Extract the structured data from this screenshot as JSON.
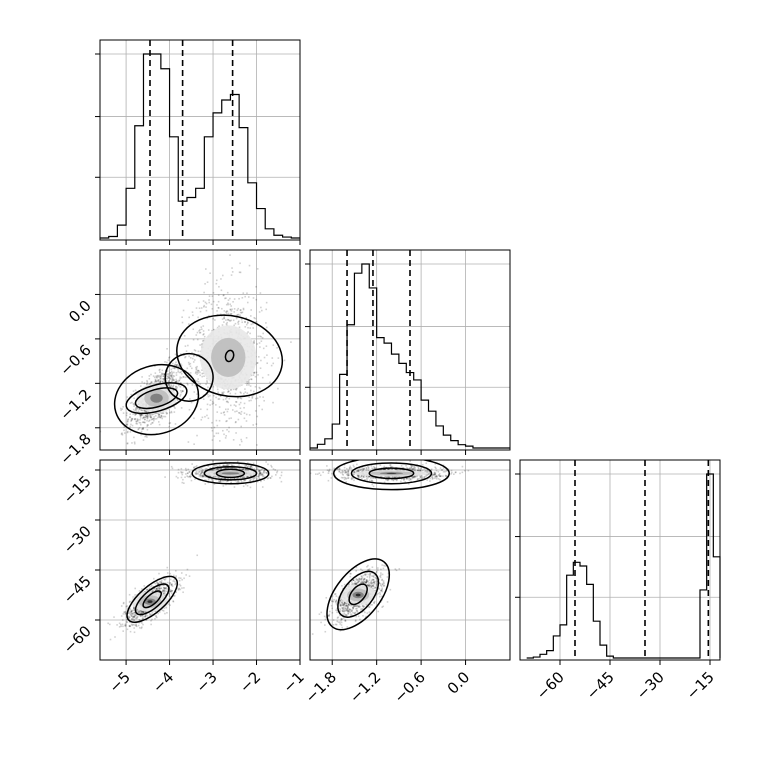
{
  "chart_data": {
    "type": "corner",
    "parameters": [
      {
        "range": [
          -5.6,
          -1.0
        ],
        "ticks": [
          -5,
          -4,
          -3,
          -2,
          -1
        ],
        "tick_labels": [
          "−5",
          "−4",
          "−3",
          "−2",
          "−1"
        ],
        "quantiles": [
          -4.45,
          -3.7,
          -2.55
        ],
        "histogram": {
          "bins": [
            [
              -5.6,
              -5.4
            ],
            [
              -5.4,
              -5.2
            ],
            [
              -5.2,
              -5.0
            ],
            [
              -5.0,
              -4.8
            ],
            [
              -4.8,
              -4.6
            ],
            [
              -4.6,
              -4.4
            ],
            [
              -4.4,
              -4.2
            ],
            [
              -4.2,
              -4.0
            ],
            [
              -4.0,
              -3.8
            ],
            [
              -3.8,
              -3.6
            ],
            [
              -3.6,
              -3.4
            ],
            [
              -3.4,
              -3.2
            ],
            [
              -3.2,
              -3.0
            ],
            [
              -3.0,
              -2.8
            ],
            [
              -2.8,
              -2.6
            ],
            [
              -2.6,
              -2.4
            ],
            [
              -2.4,
              -2.2
            ],
            [
              -2.2,
              -2.0
            ],
            [
              -2.0,
              -1.8
            ],
            [
              -1.8,
              -1.6
            ],
            [
              -1.6,
              -1.4
            ],
            [
              -1.4,
              -1.2
            ],
            [
              -1.2,
              -1.0
            ]
          ],
          "counts": [
            0.0,
            0.008,
            0.07,
            0.27,
            0.61,
            1.0,
            1.0,
            0.92,
            0.55,
            0.2,
            0.22,
            0.27,
            0.55,
            0.68,
            0.75,
            0.78,
            0.6,
            0.3,
            0.16,
            0.05,
            0.015,
            0.005,
            0.0
          ]
        }
      },
      {
        "range": [
          -2.1,
          0.6
        ],
        "ticks": [
          -1.8,
          -1.2,
          -0.6,
          0.0
        ],
        "tick_labels": [
          "−1.8",
          "−1.2",
          "−0.6",
          "0.0"
        ],
        "quantiles": [
          -1.6,
          -1.25,
          -0.75
        ],
        "histogram": {
          "bins": [
            [
              -2.1,
              -2.0
            ],
            [
              -2.0,
              -1.9
            ],
            [
              -1.9,
              -1.8
            ],
            [
              -1.8,
              -1.7
            ],
            [
              -1.7,
              -1.6
            ],
            [
              -1.6,
              -1.5
            ],
            [
              -1.5,
              -1.4
            ],
            [
              -1.4,
              -1.3
            ],
            [
              -1.3,
              -1.2
            ],
            [
              -1.2,
              -1.1
            ],
            [
              -1.1,
              -1.0
            ],
            [
              -1.0,
              -0.9
            ],
            [
              -0.9,
              -0.8
            ],
            [
              -0.8,
              -0.7
            ],
            [
              -0.7,
              -0.6
            ],
            [
              -0.6,
              -0.5
            ],
            [
              -0.5,
              -0.4
            ],
            [
              -0.4,
              -0.3
            ],
            [
              -0.3,
              -0.2
            ],
            [
              -0.2,
              -0.1
            ],
            [
              -0.1,
              0.0
            ],
            [
              0.0,
              0.1
            ],
            [
              0.1,
              0.2
            ],
            [
              0.2,
              0.3
            ],
            [
              0.3,
              0.4
            ],
            [
              0.4,
              0.5
            ],
            [
              0.5,
              0.6
            ]
          ],
          "counts": [
            0.0,
            0.02,
            0.05,
            0.13,
            0.4,
            0.67,
            0.95,
            1.0,
            0.87,
            0.6,
            0.57,
            0.51,
            0.46,
            0.41,
            0.37,
            0.26,
            0.2,
            0.12,
            0.07,
            0.04,
            0.018,
            0.01,
            0.0,
            0.0,
            0.0,
            0.0,
            0.0
          ]
        }
      },
      {
        "range": [
          -72,
          -12
        ],
        "ticks": [
          -60,
          -45,
          -30,
          -15
        ],
        "tick_labels": [
          "−60",
          "−45",
          "−30",
          "−15"
        ],
        "quantiles": [
          -55.5,
          -34.5,
          -15.5
        ],
        "histogram": {
          "bins": [
            [
              -70,
              -68
            ],
            [
              -68,
              -66
            ],
            [
              -66,
              -64
            ],
            [
              -64,
              -62
            ],
            [
              -62,
              -60
            ],
            [
              -60,
              -58
            ],
            [
              -58,
              -56
            ],
            [
              -56,
              -54
            ],
            [
              -54,
              -52
            ],
            [
              -52,
              -50
            ],
            [
              -50,
              -48
            ],
            [
              -48,
              -46
            ],
            [
              -46,
              -44
            ],
            [
              -44,
              -42
            ],
            [
              -42,
              -40
            ],
            [
              -40,
              -38
            ],
            [
              -38,
              -36
            ],
            [
              -36,
              -34
            ],
            [
              -34,
              -32
            ],
            [
              -32,
              -30
            ],
            [
              -30,
              -28
            ],
            [
              -28,
              -26
            ],
            [
              -26,
              -24
            ],
            [
              -24,
              -22
            ],
            [
              -22,
              -20
            ],
            [
              -20,
              -18
            ],
            [
              -18,
              -16
            ],
            [
              -16,
              -14
            ],
            [
              -14,
              -12
            ]
          ],
          "counts": [
            0.0,
            0.005,
            0.02,
            0.04,
            0.12,
            0.18,
            0.45,
            0.52,
            0.5,
            0.4,
            0.2,
            0.07,
            0.01,
            0.0,
            0.0,
            0.0,
            0.0,
            0.0,
            0.0,
            0.0,
            0.0,
            0.0,
            0.0,
            0.0,
            0.0,
            0.0,
            0.37,
            1.0,
            0.55
          ]
        }
      }
    ],
    "pairs": [
      {
        "x": 0,
        "y": 1,
        "components": [
          {
            "center": [
              -4.3,
              -1.4
            ],
            "sigma": [
              0.32,
              0.22
            ],
            "rho": 0.6,
            "weight": 0.5,
            "shades": 1
          },
          {
            "center": [
              -2.65,
              -0.85
            ],
            "sigma": [
              0.45,
              0.48
            ],
            "rho": 0.0,
            "weight": 0.5,
            "shades": 0
          }
        ],
        "contours": [
          {
            "components": [
              {
                "center": [
                  -4.3,
                  -1.42
                ],
                "a": 0.98,
                "b": 0.46,
                "angle": 0.3,
                "bulge": []
              },
              {
                "center": [
                  -2.62,
                  -0.83
                ],
                "a": 0.92,
                "b": 0.72,
                "angle": 1.35,
                "bulge": []
              },
              {
                "center": [
                  -3.55,
                  -1.12
                ],
                "a": 0.55,
                "b": 0.32,
                "angle": 0.4,
                "bulge": []
              }
            ]
          },
          {
            "center": [
              -4.3,
              -1.4
            ],
            "a": 0.72,
            "b": 0.3,
            "angle": 0.28
          },
          {
            "center": [
              -4.3,
              -1.4
            ],
            "a": 0.5,
            "b": 0.2,
            "angle": 0.28
          },
          {
            "center": [
              -2.62,
              -0.83
            ],
            "a": 0.13,
            "b": 0.09,
            "angle": 1.3
          }
        ]
      },
      {
        "x": 0,
        "y": 2,
        "components": [
          {
            "center": [
              -4.45,
              -54.5
            ],
            "sigma": [
              0.3,
              3.4
            ],
            "rho": 0.7,
            "weight": 0.5,
            "shades": 2
          },
          {
            "center": [
              -2.6,
              -16.0
            ],
            "sigma": [
              0.45,
              1.2
            ],
            "rho": 0.0,
            "weight": 0.5,
            "shades": 1
          }
        ],
        "contours": [
          {
            "center": [
              -4.4,
              -53.8
            ],
            "a": 0.72,
            "b": 0.3,
            "angle": 0.72
          },
          {
            "center": [
              -4.4,
              -53.8
            ],
            "a": 0.48,
            "b": 0.2,
            "angle": 0.72
          },
          {
            "center": [
              -4.4,
              -53.8
            ],
            "a": 0.26,
            "b": 0.11,
            "angle": 0.72
          },
          {
            "center": [
              -2.6,
              -16.0
            ],
            "a": 0.88,
            "b": 0.24,
            "angle": 0.0
          },
          {
            "center": [
              -2.6,
              -16.0
            ],
            "a": 0.6,
            "b": 0.15,
            "angle": 0.0
          },
          {
            "center": [
              -2.6,
              -16.0
            ],
            "a": 0.32,
            "b": 0.08,
            "angle": 0.0
          }
        ]
      },
      {
        "x": 1,
        "y": 2,
        "components": [
          {
            "center": [
              -1.45,
              -52.5
            ],
            "sigma": [
              0.17,
              3.5
            ],
            "rho": 0.6,
            "weight": 0.5,
            "shades": 2
          },
          {
            "center": [
              -1.0,
              -16.0
            ],
            "sigma": [
              0.35,
              1.1
            ],
            "rho": 0.0,
            "weight": 0.5,
            "shades": 2
          }
        ],
        "contours": [
          {
            "center": [
              -1.45,
              -52.3
            ],
            "a": 0.56,
            "b": 0.3,
            "angle": 0.9
          },
          {
            "center": [
              -1.45,
              -52.3
            ],
            "a": 0.36,
            "b": 0.2,
            "angle": 0.9
          },
          {
            "center": [
              -1.45,
              -52.3
            ],
            "a": 0.16,
            "b": 0.09,
            "angle": 0.9
          },
          {
            "center": [
              -1.0,
              -16.0
            ],
            "a": 0.78,
            "b": 0.22,
            "angle": 0.0
          },
          {
            "center": [
              -1.0,
              -16.0
            ],
            "a": 0.54,
            "b": 0.14,
            "angle": 0.0
          },
          {
            "center": [
              -1.0,
              -16.0
            ],
            "a": 0.3,
            "b": 0.07,
            "angle": 0.0
          }
        ]
      }
    ],
    "grid": true,
    "colors": {
      "ink": "#000000",
      "grid": "#b0b0b0",
      "points": "#000000"
    }
  }
}
